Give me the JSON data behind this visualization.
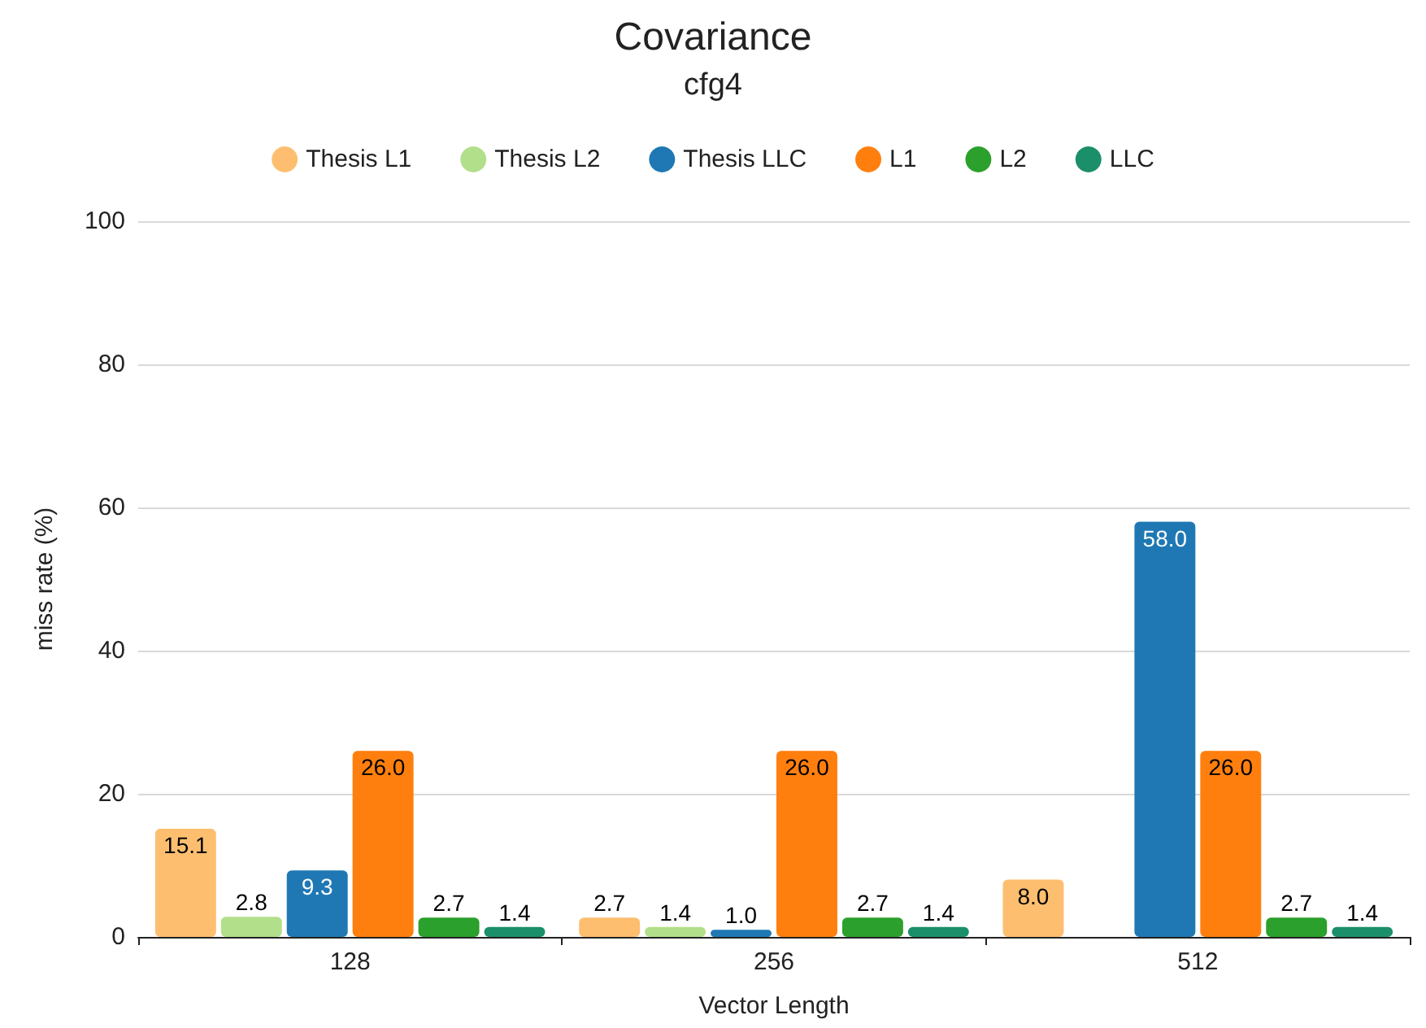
{
  "chart_data": {
    "type": "bar",
    "title": "Covariance",
    "subtitle": "cfg4",
    "xlabel": "Vector Length",
    "ylabel": "miss rate (%)",
    "categories": [
      "128",
      "256",
      "512"
    ],
    "series": [
      {
        "name": "Thesis L1",
        "color": "#fdbf6f",
        "values": [
          15.1,
          2.7,
          8.0
        ],
        "value_labels": [
          "15.1",
          "2.7",
          "8.0"
        ]
      },
      {
        "name": "Thesis L2",
        "color": "#b2df8a",
        "values": [
          2.8,
          1.4,
          null
        ],
        "value_labels": [
          "2.8",
          "1.4",
          null
        ]
      },
      {
        "name": "Thesis LLC",
        "color": "#1f78b4",
        "values": [
          9.3,
          1.0,
          58.0
        ],
        "value_labels": [
          "9.3",
          "1.0",
          "58.0"
        ]
      },
      {
        "name": "L1",
        "color": "#ff7f0e",
        "values": [
          26.0,
          26.0,
          26.0
        ],
        "value_labels": [
          "26.0",
          "26.0",
          "26.0"
        ]
      },
      {
        "name": "L2",
        "color": "#2ca02c",
        "values": [
          2.7,
          2.7,
          2.7
        ],
        "value_labels": [
          "2.7",
          "2.7",
          "2.7"
        ]
      },
      {
        "name": "LLC",
        "color": "#1b8f6a",
        "values": [
          1.4,
          1.4,
          1.4
        ],
        "value_labels": [
          "1.4",
          "1.4",
          "1.4"
        ]
      }
    ],
    "ylim": [
      0,
      100
    ],
    "yticks": [
      0,
      20,
      40,
      60,
      80,
      100
    ],
    "grid": "y",
    "legend": "top"
  }
}
